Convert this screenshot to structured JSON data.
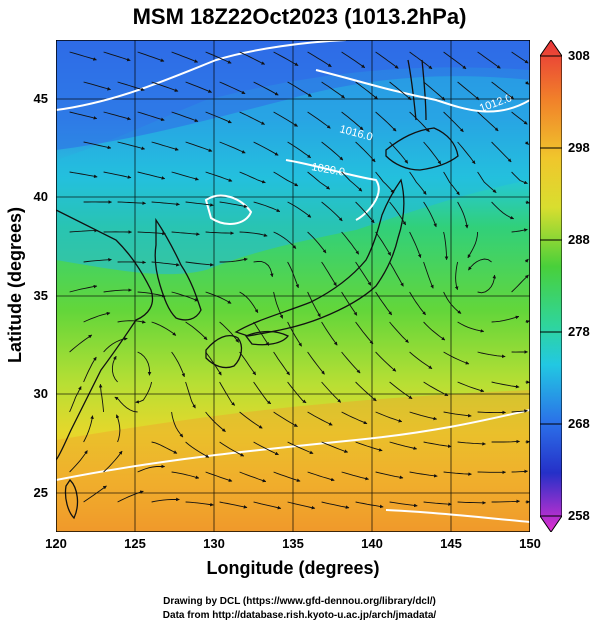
{
  "title": "MSM 18Z22Oct2023 (1013.2hPa)",
  "xaxis": {
    "label": "Longitude (degrees)",
    "range": [
      120,
      150
    ],
    "ticks": [
      "120",
      "125",
      "130",
      "135",
      "140",
      "145",
      "150"
    ]
  },
  "yaxis": {
    "label": "Latitude  (degrees)",
    "range": [
      22.5,
      47.5
    ],
    "ticks": [
      "25",
      "30",
      "35",
      "40",
      "45"
    ]
  },
  "colorbar": {
    "range": [
      258,
      308
    ],
    "ticks": [
      "258",
      "268",
      "278",
      "288",
      "298",
      "308"
    ]
  },
  "isobars": [
    {
      "label": "1016.0"
    },
    {
      "label": "1012.0"
    },
    {
      "label": "1020.0"
    }
  ],
  "credits": {
    "line1": "Drawing by DCL (https://www.gfd-dennou.org/library/dcl/)",
    "line2": "Data from http://database.rish.kyoto-u.ac.jp/arch/jmadata/"
  },
  "colors": {
    "cold": "#2f5fe6",
    "cool": "#1ad0d6",
    "mild": "#3dd13a",
    "warm": "#e8d52a",
    "hot": "#f0922a",
    "isobar": "#ffffff",
    "streamline": "#111111"
  }
}
